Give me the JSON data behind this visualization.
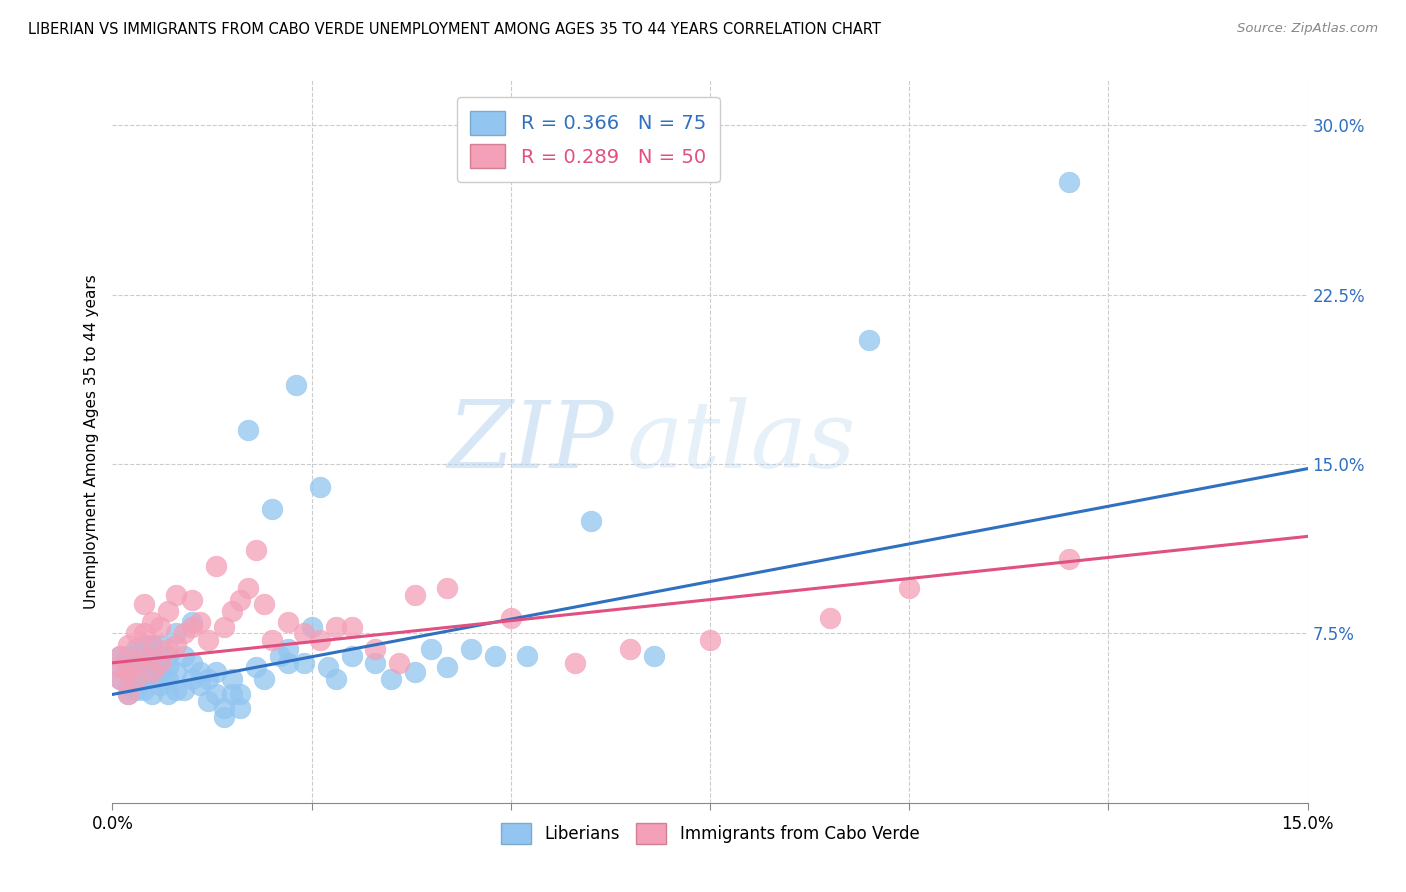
{
  "title": "LIBERIAN VS IMMIGRANTS FROM CABO VERDE UNEMPLOYMENT AMONG AGES 35 TO 44 YEARS CORRELATION CHART",
  "source": "Source: ZipAtlas.com",
  "ylabel": "Unemployment Among Ages 35 to 44 years",
  "x_min": 0.0,
  "x_max": 0.15,
  "y_min": 0.0,
  "y_max": 0.32,
  "y_ticks_right": [
    0.075,
    0.15,
    0.225,
    0.3
  ],
  "y_tick_labels_right": [
    "7.5%",
    "15.0%",
    "22.5%",
    "30.0%"
  ],
  "legend_r1": "R = 0.366",
  "legend_n1": "N = 75",
  "legend_r2": "R = 0.289",
  "legend_n2": "N = 50",
  "color_blue": "#92C5F0",
  "color_pink": "#F4A0B8",
  "line_color_blue": "#3070C0",
  "line_color_pink": "#E05080",
  "watermark_zip": "ZIP",
  "watermark_atlas": "atlas",
  "legend_label1": "Liberians",
  "legend_label2": "Immigrants from Cabo Verde",
  "liberian_x": [
    0.001,
    0.001,
    0.001,
    0.002,
    0.002,
    0.002,
    0.002,
    0.003,
    0.003,
    0.003,
    0.003,
    0.003,
    0.004,
    0.004,
    0.004,
    0.004,
    0.005,
    0.005,
    0.005,
    0.005,
    0.005,
    0.006,
    0.006,
    0.006,
    0.006,
    0.007,
    0.007,
    0.007,
    0.007,
    0.008,
    0.008,
    0.008,
    0.009,
    0.009,
    0.01,
    0.01,
    0.01,
    0.011,
    0.011,
    0.012,
    0.012,
    0.013,
    0.013,
    0.014,
    0.014,
    0.015,
    0.015,
    0.016,
    0.016,
    0.017,
    0.018,
    0.019,
    0.02,
    0.021,
    0.022,
    0.022,
    0.023,
    0.024,
    0.025,
    0.026,
    0.027,
    0.028,
    0.03,
    0.033,
    0.035,
    0.038,
    0.04,
    0.042,
    0.045,
    0.048,
    0.052,
    0.06,
    0.068,
    0.095,
    0.12
  ],
  "liberian_y": [
    0.055,
    0.06,
    0.065,
    0.048,
    0.052,
    0.06,
    0.065,
    0.05,
    0.055,
    0.06,
    0.062,
    0.068,
    0.05,
    0.055,
    0.06,
    0.07,
    0.048,
    0.055,
    0.06,
    0.065,
    0.07,
    0.052,
    0.058,
    0.062,
    0.07,
    0.048,
    0.055,
    0.06,
    0.065,
    0.05,
    0.058,
    0.075,
    0.05,
    0.065,
    0.055,
    0.062,
    0.08,
    0.052,
    0.058,
    0.045,
    0.055,
    0.048,
    0.058,
    0.038,
    0.042,
    0.048,
    0.055,
    0.042,
    0.048,
    0.165,
    0.06,
    0.055,
    0.13,
    0.065,
    0.062,
    0.068,
    0.185,
    0.062,
    0.078,
    0.14,
    0.06,
    0.055,
    0.065,
    0.062,
    0.055,
    0.058,
    0.068,
    0.06,
    0.068,
    0.065,
    0.065,
    0.125,
    0.065,
    0.205,
    0.275
  ],
  "caboverde_x": [
    0.001,
    0.001,
    0.001,
    0.002,
    0.002,
    0.002,
    0.003,
    0.003,
    0.003,
    0.004,
    0.004,
    0.004,
    0.005,
    0.005,
    0.005,
    0.006,
    0.006,
    0.007,
    0.007,
    0.008,
    0.008,
    0.009,
    0.01,
    0.01,
    0.011,
    0.012,
    0.013,
    0.014,
    0.015,
    0.016,
    0.017,
    0.018,
    0.019,
    0.02,
    0.022,
    0.024,
    0.026,
    0.028,
    0.03,
    0.033,
    0.036,
    0.038,
    0.042,
    0.05,
    0.058,
    0.065,
    0.075,
    0.09,
    0.1,
    0.12
  ],
  "caboverde_y": [
    0.055,
    0.06,
    0.065,
    0.048,
    0.058,
    0.07,
    0.055,
    0.062,
    0.075,
    0.065,
    0.075,
    0.088,
    0.058,
    0.07,
    0.08,
    0.062,
    0.078,
    0.068,
    0.085,
    0.07,
    0.092,
    0.075,
    0.078,
    0.09,
    0.08,
    0.072,
    0.105,
    0.078,
    0.085,
    0.09,
    0.095,
    0.112,
    0.088,
    0.072,
    0.08,
    0.075,
    0.072,
    0.078,
    0.078,
    0.068,
    0.062,
    0.092,
    0.095,
    0.082,
    0.062,
    0.068,
    0.072,
    0.082,
    0.095,
    0.108
  ],
  "line_blue_x0": 0.0,
  "line_blue_y0": 0.048,
  "line_blue_x1": 0.15,
  "line_blue_y1": 0.148,
  "line_pink_x0": 0.0,
  "line_pink_y0": 0.062,
  "line_pink_x1": 0.15,
  "line_pink_y1": 0.118
}
